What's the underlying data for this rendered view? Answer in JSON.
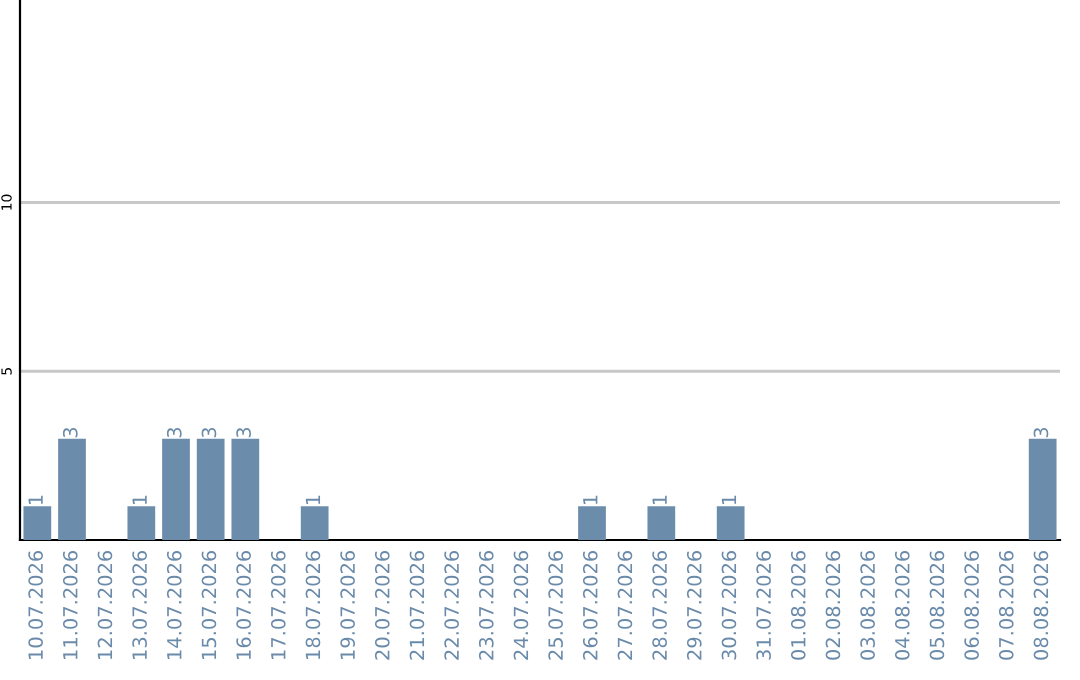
{
  "chart_data": {
    "type": "bar",
    "categories": [
      "10.07.2026",
      "11.07.2026",
      "12.07.2026",
      "13.07.2026",
      "14.07.2026",
      "15.07.2026",
      "16.07.2026",
      "17.07.2026",
      "18.07.2026",
      "19.07.2026",
      "20.07.2026",
      "21.07.2026",
      "22.07.2026",
      "23.07.2026",
      "24.07.2026",
      "25.07.2026",
      "26.07.2026",
      "27.07.2026",
      "28.07.2026",
      "29.07.2026",
      "30.07.2026",
      "31.07.2026",
      "01.08.2026",
      "02.08.2026",
      "03.08.2026",
      "04.08.2026",
      "05.08.2026",
      "06.08.2026",
      "07.08.2026",
      "08.08.2026"
    ],
    "values": [
      1,
      3,
      0,
      1,
      3,
      3,
      3,
      0,
      1,
      0,
      0,
      0,
      0,
      0,
      0,
      0,
      1,
      0,
      1,
      0,
      1,
      0,
      0,
      0,
      0,
      0,
      0,
      0,
      0,
      3
    ],
    "value_labels": [
      "1",
      "3",
      null,
      "1",
      "3",
      "3",
      "3",
      null,
      "1",
      null,
      null,
      null,
      null,
      null,
      null,
      null,
      "1",
      null,
      "1",
      null,
      "1",
      null,
      null,
      null,
      null,
      null,
      null,
      null,
      null,
      "3"
    ],
    "color": "#6b8cab",
    "ylim": [
      0,
      16
    ],
    "yticks": [
      5,
      10
    ],
    "grid": "y",
    "legend": false
  }
}
